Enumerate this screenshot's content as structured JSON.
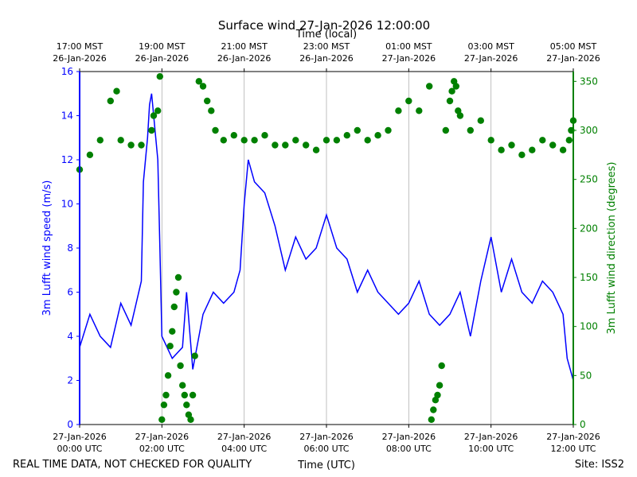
{
  "chart_data": {
    "type": "line",
    "title": "Surface wind 27-Jan-2026 12:00:00",
    "top_axis_label": "Time (local)",
    "xlabel": "Time (UTC)",
    "ylabel_left": "3m Lufft wind speed (m/s)",
    "ylabel_right": "3m Lufft wind direction (degrees)",
    "left_color": "#0000ff",
    "right_color": "#008000",
    "grid": "vertical only",
    "x_range_hours": [
      0,
      12
    ],
    "ylim_left": [
      0,
      16
    ],
    "ylim_right": [
      0,
      360
    ],
    "yticks_left": [
      0,
      2,
      4,
      6,
      8,
      10,
      12,
      14,
      16
    ],
    "yticks_right": [
      0,
      50,
      100,
      150,
      200,
      250,
      300,
      350
    ],
    "xticks_bottom": [
      {
        "hour": 0,
        "line1": "27-Jan-2026",
        "line2": "00:00 UTC"
      },
      {
        "hour": 2,
        "line1": "27-Jan-2026",
        "line2": "02:00 UTC"
      },
      {
        "hour": 4,
        "line1": "27-Jan-2026",
        "line2": "04:00 UTC"
      },
      {
        "hour": 6,
        "line1": "27-Jan-2026",
        "line2": "06:00 UTC"
      },
      {
        "hour": 8,
        "line1": "27-Jan-2026",
        "line2": "08:00 UTC"
      },
      {
        "hour": 10,
        "line1": "27-Jan-2026",
        "line2": "10:00 UTC"
      },
      {
        "hour": 12,
        "line1": "27-Jan-2026",
        "line2": "12:00 UTC"
      }
    ],
    "xticks_top": [
      {
        "hour": 0,
        "line1": "17:00 MST",
        "line2": "26-Jan-2026"
      },
      {
        "hour": 2,
        "line1": "19:00 MST",
        "line2": "26-Jan-2026"
      },
      {
        "hour": 4,
        "line1": "21:00 MST",
        "line2": "26-Jan-2026"
      },
      {
        "hour": 6,
        "line1": "23:00 MST",
        "line2": "26-Jan-2026"
      },
      {
        "hour": 8,
        "line1": "01:00 MST",
        "line2": "27-Jan-2026"
      },
      {
        "hour": 10,
        "line1": "03:00 MST",
        "line2": "27-Jan-2026"
      },
      {
        "hour": 12,
        "line1": "05:00 MST",
        "line2": "27-Jan-2026"
      }
    ],
    "series": [
      {
        "name": "3m Lufft wind speed",
        "axis": "left",
        "style": "line",
        "x_hours": [
          0,
          0.25,
          0.5,
          0.75,
          1.0,
          1.25,
          1.5,
          1.55,
          1.6,
          1.65,
          1.7,
          1.75,
          1.8,
          1.85,
          1.9,
          1.95,
          2.0,
          2.25,
          2.5,
          2.6,
          2.75,
          3.0,
          3.25,
          3.5,
          3.75,
          3.9,
          4.0,
          4.1,
          4.25,
          4.5,
          4.75,
          5.0,
          5.25,
          5.5,
          5.75,
          6.0,
          6.25,
          6.5,
          6.75,
          7.0,
          7.25,
          7.5,
          7.75,
          8.0,
          8.25,
          8.5,
          8.75,
          9.0,
          9.25,
          9.5,
          9.75,
          10.0,
          10.25,
          10.5,
          10.75,
          11.0,
          11.25,
          11.5,
          11.75,
          11.85,
          12.0
        ],
        "values": [
          3.5,
          5.0,
          4.0,
          3.5,
          5.5,
          4.5,
          6.5,
          11.0,
          12.0,
          13.0,
          14.5,
          15.0,
          14.0,
          13.0,
          12.0,
          8.0,
          4.0,
          3.0,
          3.5,
          6.0,
          2.5,
          5.0,
          6.0,
          5.5,
          6.0,
          7.0,
          10.0,
          12.0,
          11.0,
          10.5,
          9.0,
          7.0,
          8.5,
          7.5,
          8.0,
          9.5,
          8.0,
          7.5,
          6.0,
          7.0,
          6.0,
          5.5,
          5.0,
          5.5,
          6.5,
          5.0,
          4.5,
          5.0,
          6.0,
          4.0,
          6.5,
          8.5,
          6.0,
          7.5,
          6.0,
          5.5,
          6.5,
          6.0,
          5.0,
          3.0,
          2.0
        ]
      },
      {
        "name": "3m Lufft wind direction",
        "axis": "right",
        "style": "markers",
        "x_hours": [
          0,
          0.25,
          0.5,
          0.75,
          0.9,
          1.0,
          1.25,
          1.5,
          1.75,
          1.8,
          1.9,
          1.95,
          2.0,
          2.05,
          2.1,
          2.15,
          2.2,
          2.25,
          2.3,
          2.35,
          2.4,
          2.45,
          2.5,
          2.55,
          2.6,
          2.65,
          2.7,
          2.75,
          2.8,
          2.9,
          3.0,
          3.1,
          3.2,
          3.3,
          3.5,
          3.75,
          4.0,
          4.25,
          4.5,
          4.75,
          5.0,
          5.25,
          5.5,
          5.75,
          6.0,
          6.25,
          6.5,
          6.75,
          7.0,
          7.25,
          7.5,
          7.75,
          8.0,
          8.25,
          8.5,
          8.55,
          8.6,
          8.65,
          8.7,
          8.75,
          8.8,
          8.9,
          9.0,
          9.05,
          9.1,
          9.15,
          9.2,
          9.25,
          9.5,
          9.75,
          10.0,
          10.25,
          10.5,
          10.75,
          11.0,
          11.25,
          11.5,
          11.75,
          11.9,
          11.95,
          12.0
        ],
        "values": [
          260,
          275,
          290,
          330,
          340,
          290,
          285,
          285,
          300,
          315,
          320,
          355,
          5,
          20,
          30,
          50,
          80,
          95,
          120,
          135,
          150,
          60,
          40,
          30,
          20,
          10,
          5,
          30,
          70,
          350,
          345,
          330,
          320,
          300,
          290,
          295,
          290,
          290,
          295,
          285,
          285,
          290,
          285,
          280,
          290,
          290,
          295,
          300,
          290,
          295,
          300,
          320,
          330,
          320,
          345,
          5,
          15,
          25,
          30,
          40,
          60,
          300,
          330,
          340,
          350,
          345,
          320,
          315,
          300,
          310,
          290,
          280,
          285,
          275,
          280,
          290,
          285,
          280,
          290,
          300,
          310
        ]
      }
    ]
  },
  "footer": {
    "left_note": "REAL TIME DATA, NOT CHECKED FOR QUALITY",
    "site": "Site: ISS2"
  }
}
